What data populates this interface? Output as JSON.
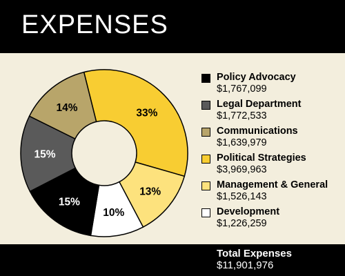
{
  "header": {
    "title": "EXPENSES"
  },
  "chart_data": {
    "type": "pie",
    "categories": [
      "Policy Advocacy",
      "Legal Department",
      "Communications",
      "Political Strategies",
      "Management & General",
      "Development"
    ],
    "values": [
      1767099,
      1772533,
      1639979,
      3969963,
      1526143,
      1226259
    ],
    "value_labels": [
      "$1,767,099",
      "$1,772,533",
      "$1,639,979",
      "$3,969,963",
      "$1,526,143",
      "$1,226,259"
    ],
    "percent_labels": [
      "15%",
      "15%",
      "14%",
      "33%",
      "13%",
      "10%"
    ],
    "colors": [
      "#000000",
      "#5a5a5a",
      "#b8a56a",
      "#f8cd32",
      "#fde27d",
      "#ffffff"
    ],
    "label_colors": [
      "#ffffff",
      "#ffffff",
      "#000000",
      "#000000",
      "#000000",
      "#000000"
    ],
    "donut": true,
    "legend_position": "right"
  },
  "total": {
    "label": "Total Expenses",
    "value": "$11,901,976"
  }
}
